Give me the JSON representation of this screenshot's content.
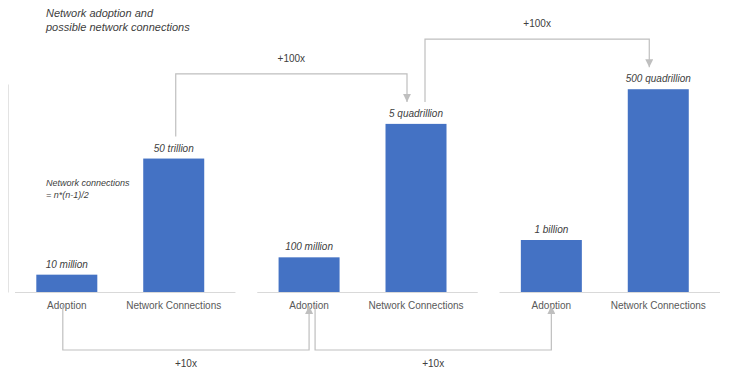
{
  "chart_data": {
    "type": "bar",
    "title": [
      "Network adoption and",
      "possible network connections"
    ],
    "categories": [
      "Adoption",
      "Network Connections",
      "Adoption",
      "Network Connections",
      "Adoption",
      "Network Connections"
    ],
    "values": [
      10000000,
      50000000000000,
      100000000,
      5000000000000000,
      1000000000,
      500000000000000000
    ],
    "value_labels": [
      "10 million",
      "50 trillion",
      "100 million",
      "5 quadrillion",
      "1 billion",
      "500 quadrillion"
    ],
    "color": "#4472c4",
    "log": "y",
    "ylim": [
      1000000,
      1000000000000000000
    ],
    "yticks": [],
    "data_labels": true,
    "tick_labels": "x",
    "annotations": {
      "formula": [
        "Network connections",
        "= n*(n-1)/2"
      ],
      "adoption_growth": [
        "+10x",
        "+10x"
      ],
      "connection_growth": [
        "+100x",
        "+100x"
      ]
    }
  }
}
